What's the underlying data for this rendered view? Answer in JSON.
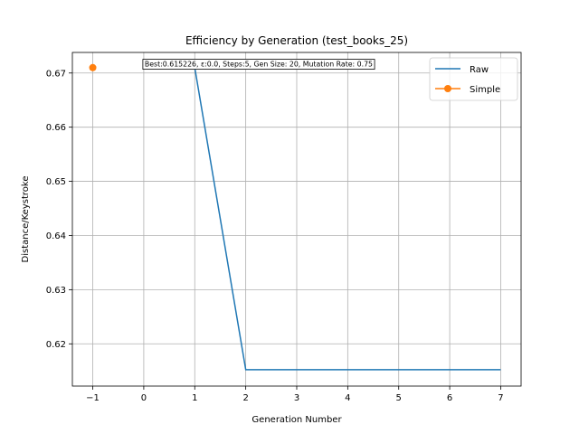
{
  "chart_data": {
    "type": "line",
    "title": "Efficiency by Generation (test_books_25)",
    "xlabel": "Generation Number",
    "ylabel": "Distance/Keystroke",
    "xlim": [
      -1.4,
      7.4
    ],
    "ylim": [
      0.6122,
      0.6738
    ],
    "xticks": [
      -1,
      0,
      1,
      2,
      3,
      4,
      5,
      6,
      7
    ],
    "xtick_labels": [
      "−1",
      "0",
      "1",
      "2",
      "3",
      "4",
      "5",
      "6",
      "7"
    ],
    "yticks": [
      0.62,
      0.63,
      0.64,
      0.65,
      0.66,
      0.67
    ],
    "ytick_labels": [
      "0.62",
      "0.63",
      "0.64",
      "0.65",
      "0.66",
      "0.67"
    ],
    "grid": true,
    "legend_position": "top-right",
    "annotation": "Best:0.615226, ε:0.0, Steps:5, Gen Size: 20, Mutation Rate: 0.75",
    "series": [
      {
        "name": "Raw",
        "color": "#1f77b4",
        "marker": "none",
        "x": [
          1,
          2,
          3,
          4,
          5,
          6,
          7
        ],
        "y": [
          0.671,
          0.615226,
          0.615226,
          0.615226,
          0.615226,
          0.615226,
          0.615226
        ]
      },
      {
        "name": "Simple",
        "color": "#ff7f0e",
        "marker": "circle",
        "x": [
          -1
        ],
        "y": [
          0.671
        ]
      }
    ]
  }
}
